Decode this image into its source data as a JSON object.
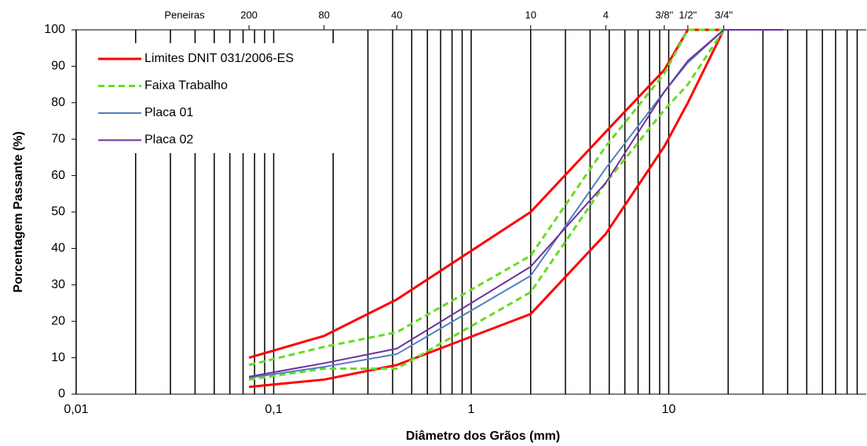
{
  "chart_data": {
    "type": "line",
    "xlabel": "Diâmetro dos Grãos (mm)",
    "ylabel": "Porcentagem Passante (%)",
    "top_axis_label": "Peneiras",
    "xscale": "log",
    "minor_grid": true,
    "xlim": [
      0.01,
      100
    ],
    "ylim": [
      0,
      100
    ],
    "xticks": [
      {
        "value": 0.01,
        "label": "0,01"
      },
      {
        "value": 0.1,
        "label": "0,1"
      },
      1,
      10
    ],
    "yticks": [
      0,
      10,
      20,
      30,
      40,
      50,
      60,
      70,
      80,
      90,
      100
    ],
    "top_ticks": [
      {
        "value": 0.075,
        "label": "200"
      },
      {
        "value": 0.18,
        "label": "80"
      },
      {
        "value": 0.42,
        "label": "40"
      },
      {
        "value": 2,
        "label": "10"
      },
      {
        "value": 4.8,
        "label": "4"
      },
      {
        "value": 9.5,
        "label": "3/8\""
      },
      {
        "value": 12.5,
        "label": "1/2\""
      },
      {
        "value": 19,
        "label": "3/4\""
      }
    ],
    "legend": "upper left",
    "x": [
      0.075,
      0.18,
      0.42,
      2,
      4.8,
      9.5,
      12.5,
      19,
      38
    ],
    "series": [
      {
        "name": "Limites DNIT 031/2006-ES",
        "color": "#ff0000",
        "style": "solid",
        "width": 3,
        "values_upper": [
          10,
          16,
          26,
          50,
          72,
          89,
          100,
          100,
          null
        ],
        "values_lower": [
          2,
          4,
          8,
          22,
          44,
          68,
          80,
          100,
          null
        ]
      },
      {
        "name": "Faixa Trabalho",
        "color": "#66dd22",
        "style": "dashed",
        "width": 3,
        "values_upper": [
          8,
          13,
          17,
          38,
          68,
          88,
          100,
          100,
          null
        ],
        "values_lower": [
          4,
          7,
          7,
          28,
          58,
          78,
          85,
          100,
          null
        ]
      },
      {
        "name": "Placa 01",
        "color": "#4f81bd",
        "style": "solid",
        "width": 2,
        "values": [
          4.5,
          7.5,
          11,
          32.5,
          62,
          83,
          91,
          100,
          100
        ]
      },
      {
        "name": "Placa 02",
        "color": "#7030a0",
        "style": "solid",
        "width": 2,
        "values": [
          4.8,
          8.5,
          12.5,
          35,
          58,
          83,
          91.5,
          100,
          100
        ]
      }
    ]
  }
}
